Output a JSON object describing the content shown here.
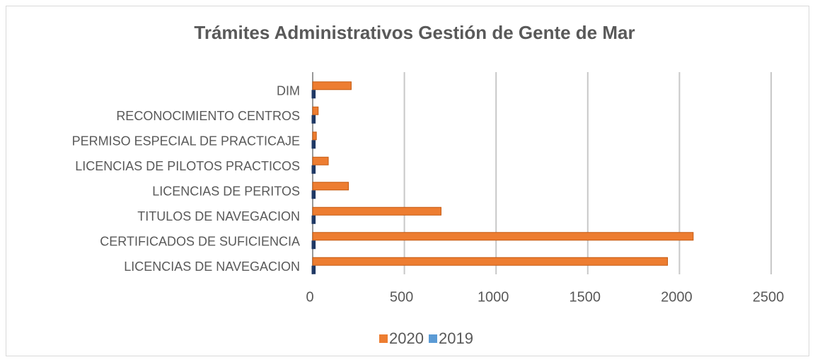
{
  "chart_data": {
    "type": "hbar",
    "title": "Trámites Administrativos Gestión de Gente de Mar",
    "categories": [
      "LICENCIAS DE NAVEGACION",
      "CERTIFICADOS DE SUFICIENCIA",
      "TITULOS DE NAVEGACION",
      "LICENCIAS DE PERITOS",
      "LICENCIAS DE PILOTOS PRACTICOS",
      "PERMISO ESPECIAL DE PRACTICAJE",
      "RECONOCIMIENTO CENTROS",
      "DIM"
    ],
    "series": [
      {
        "name": "2020",
        "color": "#ed7d31",
        "values": [
          1935,
          2075,
          700,
          195,
          85,
          20,
          30,
          210
        ]
      },
      {
        "name": "2019",
        "color": "#5b9bd5",
        "values": [
          10,
          10,
          10,
          10,
          10,
          10,
          10,
          10
        ]
      }
    ],
    "xlim": [
      0,
      2500
    ],
    "xticks": [
      0,
      500,
      1000,
      1500,
      2000,
      2500
    ],
    "grid": true,
    "legend": "bottom"
  }
}
